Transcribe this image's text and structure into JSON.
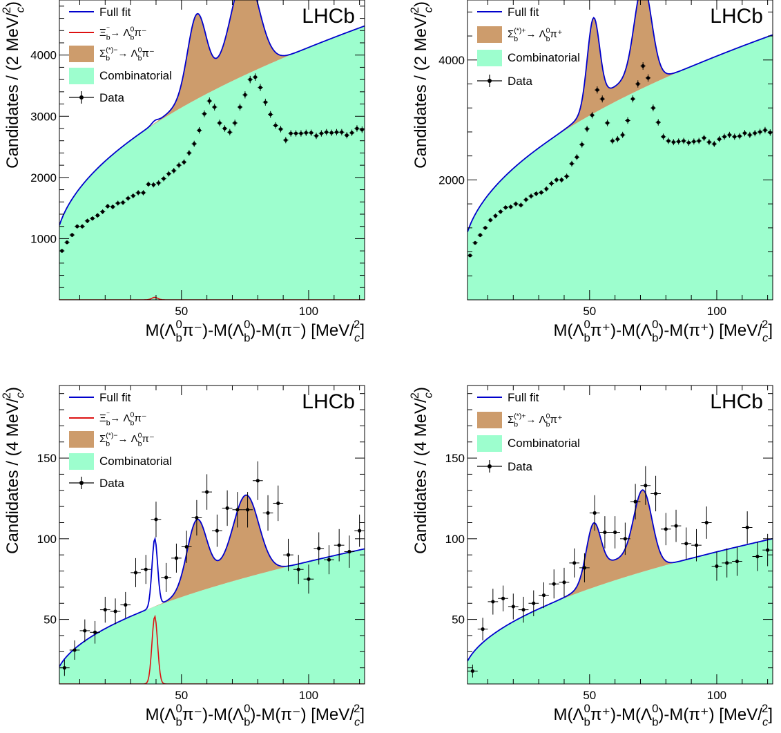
{
  "colors": {
    "fit": "#0000cc",
    "signal_xi": "#dd1111",
    "signal_sigma": "#cd9c6c",
    "combinatorial": "#9dfece",
    "data": "#000000"
  },
  "chart_data": [
    {
      "type": "line",
      "experiment_label": "LHCb",
      "xlabel_parts": [
        "M(Λ",
        "b",
        "0",
        "π⁻)-M(Λ",
        "b",
        "0",
        ")-M(π⁻) [MeV/",
        "c",
        "2",
        "]"
      ],
      "ylabel_parts": [
        "Candidates / (2 MeV/",
        "c",
        "2",
        ")"
      ],
      "xlim": [
        2,
        122
      ],
      "ylim": [
        0,
        4900
      ],
      "xticks": [
        50,
        100
      ],
      "yticks": [
        1000,
        2000,
        3000,
        4000
      ],
      "legend": {
        "fit": "Full fit",
        "xi": [
          "Ξ",
          "b",
          "⁻",
          "→ Λ",
          "b",
          "0",
          "π⁻"
        ],
        "sigma": [
          "Σ",
          "b",
          "(*)−",
          "→ Λ",
          "b",
          "0",
          "π⁻"
        ],
        "comb": "Combinatorial",
        "data": "Data"
      },
      "has_xi": true,
      "background": {
        "A": 780,
        "B": 335,
        "p": 0.5
      },
      "peaks": [
        {
          "mu": 56,
          "sigma": 3.6,
          "amp": 1230
        },
        {
          "mu": 75,
          "sigma": 5.4,
          "amp": 1570
        },
        {
          "mu": 63,
          "sigma": 10,
          "amp": 200
        }
      ],
      "xi_peak": {
        "mu": 39.5,
        "sigma": 1.2,
        "amp": 40
      },
      "points": {
        "x": [
          3,
          5,
          7,
          9,
          11,
          13,
          15,
          17,
          19,
          21,
          23,
          25,
          27,
          29,
          31,
          33,
          35,
          37,
          39,
          41,
          43,
          45,
          47,
          49,
          51,
          53,
          55,
          57,
          59,
          61,
          63,
          65,
          67,
          69,
          71,
          73,
          75,
          77,
          79,
          81,
          83,
          85,
          87,
          89,
          91,
          93,
          95,
          97,
          99,
          101,
          103,
          105,
          107,
          109,
          111,
          113,
          115,
          117,
          119,
          121
        ],
        "y": [
          800,
          940,
          1060,
          1200,
          1200,
          1290,
          1330,
          1380,
          1440,
          1530,
          1520,
          1580,
          1590,
          1660,
          1700,
          1750,
          1750,
          1890,
          1880,
          1910,
          1980,
          2060,
          2110,
          2200,
          2250,
          2400,
          2550,
          2770,
          3040,
          3250,
          3150,
          2890,
          2800,
          2740,
          2890,
          3150,
          3350,
          3600,
          3640,
          3470,
          3230,
          3030,
          2850,
          2790,
          2610,
          2720,
          2720,
          2720,
          2730,
          2730,
          2680,
          2720,
          2740,
          2730,
          2740,
          2740,
          2690,
          2730,
          2800,
          2780
        ],
        "yerr": [
          28,
          31,
          33,
          35,
          35,
          36,
          36,
          37,
          38,
          39,
          39,
          40,
          40,
          41,
          41,
          42,
          42,
          43,
          43,
          44,
          44,
          45,
          46,
          47,
          47,
          49,
          50,
          53,
          55,
          57,
          56,
          54,
          53,
          52,
          54,
          56,
          58,
          60,
          60,
          59,
          57,
          55,
          53,
          53,
          51,
          52,
          52,
          52,
          52,
          52,
          52,
          52,
          52,
          52,
          52,
          52,
          52,
          52,
          53,
          53
        ]
      }
    },
    {
      "type": "line",
      "experiment_label": "LHCb",
      "xlabel_parts": [
        "M(Λ",
        "b",
        "0",
        "π⁺)-M(Λ",
        "b",
        "0",
        ")-M(π⁺) [MeV/",
        "c",
        "2",
        "]"
      ],
      "ylabel_parts": [
        "Candidates / (2 MeV/",
        "c",
        "2",
        ")"
      ],
      "xlim": [
        2,
        122
      ],
      "ylim": [
        0,
        5000
      ],
      "xticks": [
        50,
        100
      ],
      "yticks": [
        2000,
        4000
      ],
      "legend": {
        "fit": "Full fit",
        "sigma": [
          "Σ",
          "b",
          "(*)+",
          "→ Λ",
          "b",
          "0",
          "π⁺"
        ],
        "comb": "Combinatorial",
        "data": "Data"
      },
      "has_xi": false,
      "background": {
        "A": 690,
        "B": 338,
        "p": 0.5
      },
      "peaks": [
        {
          "mu": 51.5,
          "sigma": 2.4,
          "amp": 1450
        },
        {
          "mu": 71,
          "sigma": 3.4,
          "amp": 1600
        },
        {
          "mu": 61,
          "sigma": 9,
          "amp": 250
        }
      ],
      "points": {
        "x": [
          3,
          5,
          7,
          9,
          11,
          13,
          15,
          17,
          19,
          21,
          23,
          25,
          27,
          29,
          31,
          33,
          35,
          37,
          39,
          41,
          43,
          45,
          47,
          49,
          51,
          53,
          55,
          57,
          59,
          61,
          63,
          65,
          67,
          69,
          71,
          73,
          75,
          77,
          79,
          81,
          83,
          85,
          87,
          89,
          91,
          93,
          95,
          97,
          99,
          101,
          103,
          105,
          107,
          109,
          111,
          113,
          115,
          117,
          119,
          121
        ],
        "y": [
          740,
          950,
          1080,
          1200,
          1330,
          1400,
          1470,
          1540,
          1550,
          1600,
          1580,
          1670,
          1730,
          1770,
          1790,
          1850,
          1940,
          2000,
          2000,
          2060,
          2270,
          2380,
          2590,
          2850,
          3080,
          3500,
          3350,
          2950,
          2650,
          2680,
          2750,
          2990,
          3350,
          3600,
          3900,
          3700,
          3200,
          2960,
          2720,
          2650,
          2630,
          2640,
          2650,
          2620,
          2640,
          2650,
          2700,
          2630,
          2600,
          2680,
          2720,
          2750,
          2720,
          2730,
          2780,
          2750,
          2780,
          2800,
          2830,
          2790
        ],
        "yerr": [
          27,
          31,
          33,
          35,
          36,
          37,
          38,
          39,
          39,
          40,
          40,
          41,
          42,
          42,
          42,
          43,
          44,
          45,
          45,
          45,
          48,
          49,
          51,
          53,
          55,
          59,
          58,
          54,
          51,
          52,
          52,
          55,
          58,
          60,
          62,
          61,
          57,
          54,
          52,
          51,
          51,
          51,
          51,
          51,
          51,
          51,
          52,
          51,
          51,
          52,
          52,
          52,
          52,
          52,
          53,
          52,
          53,
          53,
          53,
          53
        ]
      }
    },
    {
      "type": "line",
      "experiment_label": "LHCb",
      "xlabel_parts": [
        "M(Λ",
        "b",
        "0",
        "π⁻)-M(Λ",
        "b",
        "0",
        ")-M(π⁻) [MeV/",
        "c",
        "2",
        "]"
      ],
      "ylabel_parts": [
        "Candidates / (4 MeV/",
        "c",
        "2",
        ")"
      ],
      "xlim": [
        2,
        122
      ],
      "ylim": [
        10,
        195
      ],
      "xticks": [
        50,
        100
      ],
      "yticks": [
        50,
        100,
        150
      ],
      "legend": {
        "fit": "Full fit",
        "xi": [
          "Ξ",
          "b",
          "⁻",
          "→ Λ",
          "b",
          "0",
          "π⁻"
        ],
        "sigma": [
          "Σ",
          "b",
          "(*)−",
          "→ Λ",
          "b",
          "0",
          "π⁻"
        ],
        "comb": "Combinatorial",
        "data": "Data"
      },
      "has_xi": true,
      "background": {
        "A": 11,
        "B": 7.5,
        "p": 0.5
      },
      "peaks": [
        {
          "mu": 56,
          "sigma": 3.8,
          "amp": 40
        },
        {
          "mu": 75.5,
          "sigma": 5,
          "amp": 47
        },
        {
          "mu": 65,
          "sigma": 9,
          "amp": 8
        }
      ],
      "xi_peak": {
        "mu": 39.5,
        "sigma": 1.1,
        "amp": 42
      },
      "points": {
        "x": [
          4,
          8,
          12,
          16,
          20,
          24,
          28,
          32,
          36,
          40,
          44,
          48,
          52,
          56,
          60,
          64,
          68,
          72,
          76,
          80,
          84,
          88,
          92,
          96,
          100,
          104,
          108,
          112,
          116,
          120
        ],
        "y": [
          20,
          31,
          43,
          42,
          56,
          55,
          59,
          79,
          81,
          112,
          76,
          88,
          95,
          113,
          129,
          105,
          119,
          118,
          118,
          136,
          116,
          122,
          90,
          81,
          75,
          94,
          87,
          96,
          92,
          105
        ],
        "yerr": [
          5,
          6,
          7,
          7,
          8,
          8,
          8,
          9,
          9,
          11,
          9,
          9,
          10,
          11,
          11,
          10,
          11,
          11,
          11,
          12,
          11,
          11,
          10,
          9,
          9,
          10,
          9,
          10,
          10,
          10
        ]
      }
    },
    {
      "type": "line",
      "experiment_label": "LHCb",
      "xlabel_parts": [
        "M(Λ",
        "b",
        "0",
        "π⁺)-M(Λ",
        "b",
        "0",
        ")-M(π⁺) [MeV/",
        "c",
        "2",
        "]"
      ],
      "ylabel_parts": [
        "Candidates / (4 MeV/",
        "c",
        "2",
        ")"
      ],
      "xlim": [
        2,
        122
      ],
      "ylim": [
        10,
        195
      ],
      "xticks": [
        50,
        100
      ],
      "yticks": [
        50,
        100,
        150
      ],
      "legend": {
        "fit": "Full fit",
        "sigma": [
          "Σ",
          "b",
          "(*)+",
          "→ Λ",
          "b",
          "0",
          "π⁺"
        ],
        "comb": "Combinatorial",
        "data": "Data"
      },
      "has_xi": false,
      "background": {
        "A": 14,
        "B": 7.8,
        "p": 0.5
      },
      "peaks": [
        {
          "mu": 51.5,
          "sigma": 2.8,
          "amp": 33
        },
        {
          "mu": 71,
          "sigma": 3.6,
          "amp": 46
        },
        {
          "mu": 60,
          "sigma": 8,
          "amp": 12
        }
      ],
      "points": {
        "x": [
          4,
          8,
          12,
          16,
          20,
          24,
          28,
          32,
          36,
          40,
          44,
          48,
          52,
          56,
          60,
          64,
          68,
          72,
          76,
          80,
          84,
          88,
          92,
          96,
          100,
          104,
          108,
          112,
          116,
          120
        ],
        "y": [
          18,
          44,
          61,
          63,
          58,
          56,
          60,
          65,
          72,
          73,
          85,
          82,
          116,
          104,
          104,
          100,
          123,
          133,
          128,
          106,
          108,
          97,
          96,
          110,
          83,
          85,
          86,
          107,
          89,
          93
        ],
        "yerr": [
          4,
          7,
          8,
          8,
          8,
          8,
          8,
          8,
          9,
          9,
          9,
          9,
          11,
          10,
          10,
          10,
          11,
          12,
          11,
          10,
          10,
          10,
          10,
          10,
          9,
          9,
          9,
          10,
          9,
          10
        ]
      }
    }
  ]
}
